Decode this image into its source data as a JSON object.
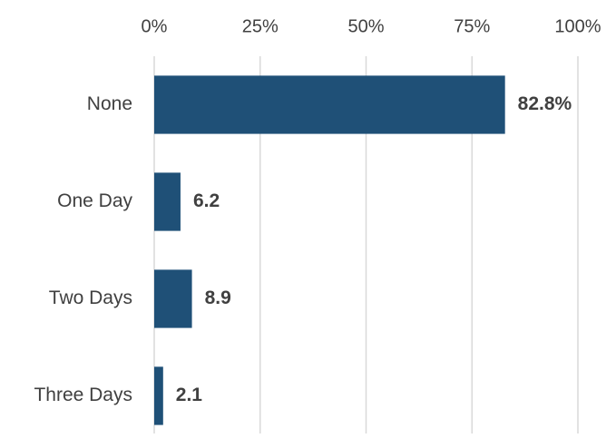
{
  "chart_data": {
    "type": "bar",
    "orientation": "horizontal",
    "title": "",
    "xlabel": "",
    "ylabel": "",
    "categories": [
      "None",
      "One Day",
      "Two Days",
      "Three Days"
    ],
    "values": [
      82.8,
      6.2,
      8.9,
      2.1
    ],
    "data_labels": [
      "82.8%",
      "6.2",
      "8.9",
      "2.1"
    ],
    "xlim": [
      0,
      100
    ],
    "x_ticks": [
      0,
      25,
      50,
      75,
      100
    ],
    "x_tick_labels": [
      "0%",
      "25%",
      "50%",
      "75%",
      "100%"
    ],
    "x_axis_position": "top",
    "grid": "vertical",
    "legend": "none",
    "bar_color": "#1f5077",
    "gridline_color": "#d9d9d9",
    "text_color": "#404040"
  }
}
